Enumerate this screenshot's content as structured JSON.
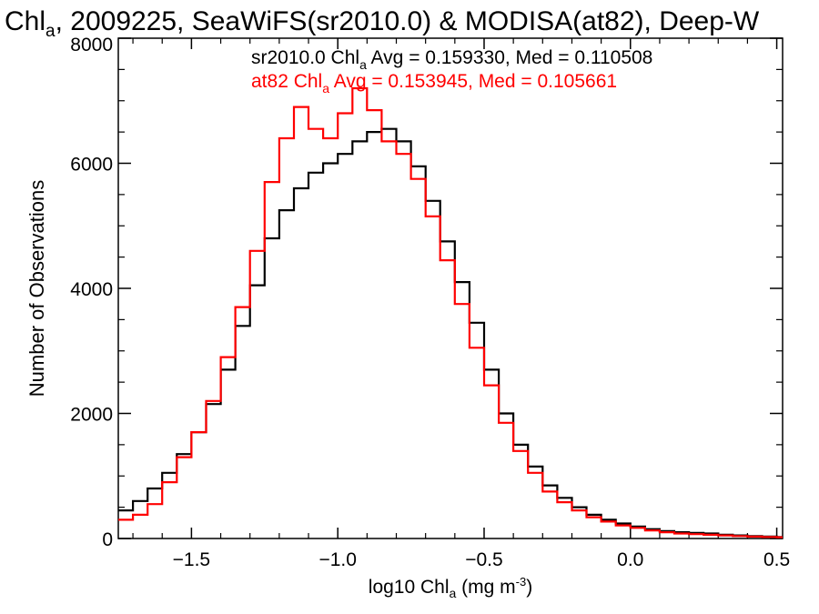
{
  "chart_data": {
    "type": "line",
    "title": {
      "prefix": "Chl",
      "sub": "a",
      "rest": ", 2009225, SeaWiFS(sr2010.0) & MODISA(at82), Deep-W"
    },
    "xlabel": {
      "prefix": "log10 Chl",
      "sub": "a",
      "mid": " (mg m",
      "sup": "-3",
      "end": ")"
    },
    "ylabel": "Number of Observations",
    "xlim": [
      -1.75,
      0.52
    ],
    "ylim": [
      0,
      8000
    ],
    "x_ticks": [
      -1.5,
      -1.0,
      -0.5,
      0.0,
      0.5
    ],
    "x_tick_labels": [
      "−1.5",
      "−1.0",
      "−0.5",
      "0.0",
      "0.5"
    ],
    "y_ticks": [
      0,
      2000,
      4000,
      6000,
      8000
    ],
    "y_tick_labels": [
      "0",
      "2000",
      "4000",
      "6000",
      "8000"
    ],
    "grid": false,
    "legend_placement": "top-center",
    "series": [
      {
        "name": "sr2010.0",
        "color": "#000000",
        "annotation": {
          "prefix": "sr2010.0 Chl",
          "sub": "a",
          "rest": " Avg = 0.159330, Med = 0.110508"
        },
        "points": [
          [
            -1.75,
            450
          ],
          [
            -1.7,
            600
          ],
          [
            -1.65,
            800
          ],
          [
            -1.6,
            1050
          ],
          [
            -1.55,
            1350
          ],
          [
            -1.5,
            1700
          ],
          [
            -1.45,
            2150
          ],
          [
            -1.4,
            2700
          ],
          [
            -1.35,
            3400
          ],
          [
            -1.3,
            4050
          ],
          [
            -1.25,
            4800
          ],
          [
            -1.2,
            5250
          ],
          [
            -1.15,
            5600
          ],
          [
            -1.1,
            5850
          ],
          [
            -1.05,
            6000
          ],
          [
            -1.0,
            6150
          ],
          [
            -0.95,
            6350
          ],
          [
            -0.9,
            6500
          ],
          [
            -0.85,
            6550
          ],
          [
            -0.8,
            6350
          ],
          [
            -0.75,
            5950
          ],
          [
            -0.7,
            5400
          ],
          [
            -0.65,
            4750
          ],
          [
            -0.6,
            4100
          ],
          [
            -0.55,
            3450
          ],
          [
            -0.5,
            2700
          ],
          [
            -0.45,
            2000
          ],
          [
            -0.4,
            1500
          ],
          [
            -0.35,
            1150
          ],
          [
            -0.3,
            850
          ],
          [
            -0.25,
            650
          ],
          [
            -0.2,
            500
          ],
          [
            -0.15,
            380
          ],
          [
            -0.1,
            300
          ],
          [
            -0.05,
            240
          ],
          [
            0.0,
            190
          ],
          [
            0.05,
            150
          ],
          [
            0.1,
            120
          ],
          [
            0.15,
            100
          ],
          [
            0.2,
            90
          ],
          [
            0.25,
            80
          ],
          [
            0.3,
            60
          ],
          [
            0.35,
            50
          ],
          [
            0.4,
            40
          ],
          [
            0.45,
            30
          ],
          [
            0.5,
            25
          ]
        ]
      },
      {
        "name": "at82",
        "color": "#ff0000",
        "annotation": {
          "prefix": "at82 Chl",
          "sub": "a",
          "rest": " Avg = 0.153945, Med = 0.105661"
        },
        "points": [
          [
            -1.75,
            300
          ],
          [
            -1.7,
            380
          ],
          [
            -1.65,
            550
          ],
          [
            -1.6,
            900
          ],
          [
            -1.55,
            1300
          ],
          [
            -1.5,
            1700
          ],
          [
            -1.45,
            2200
          ],
          [
            -1.4,
            2900
          ],
          [
            -1.35,
            3700
          ],
          [
            -1.3,
            4600
          ],
          [
            -1.25,
            5700
          ],
          [
            -1.2,
            6400
          ],
          [
            -1.15,
            6900
          ],
          [
            -1.1,
            6550
          ],
          [
            -1.05,
            6400
          ],
          [
            -1.0,
            6800
          ],
          [
            -0.95,
            7200
          ],
          [
            -0.9,
            6850
          ],
          [
            -0.85,
            6350
          ],
          [
            -0.8,
            6150
          ],
          [
            -0.75,
            5750
          ],
          [
            -0.7,
            5150
          ],
          [
            -0.65,
            4450
          ],
          [
            -0.6,
            3750
          ],
          [
            -0.55,
            3050
          ],
          [
            -0.5,
            2450
          ],
          [
            -0.45,
            1850
          ],
          [
            -0.4,
            1400
          ],
          [
            -0.35,
            1050
          ],
          [
            -0.3,
            750
          ],
          [
            -0.25,
            580
          ],
          [
            -0.2,
            450
          ],
          [
            -0.15,
            340
          ],
          [
            -0.1,
            270
          ],
          [
            -0.05,
            210
          ],
          [
            0.0,
            170
          ],
          [
            0.05,
            130
          ],
          [
            0.1,
            100
          ],
          [
            0.15,
            80
          ],
          [
            0.2,
            70
          ],
          [
            0.25,
            60
          ],
          [
            0.3,
            50
          ],
          [
            0.35,
            40
          ],
          [
            0.4,
            30
          ],
          [
            0.45,
            25
          ],
          [
            0.5,
            20
          ]
        ]
      }
    ]
  }
}
